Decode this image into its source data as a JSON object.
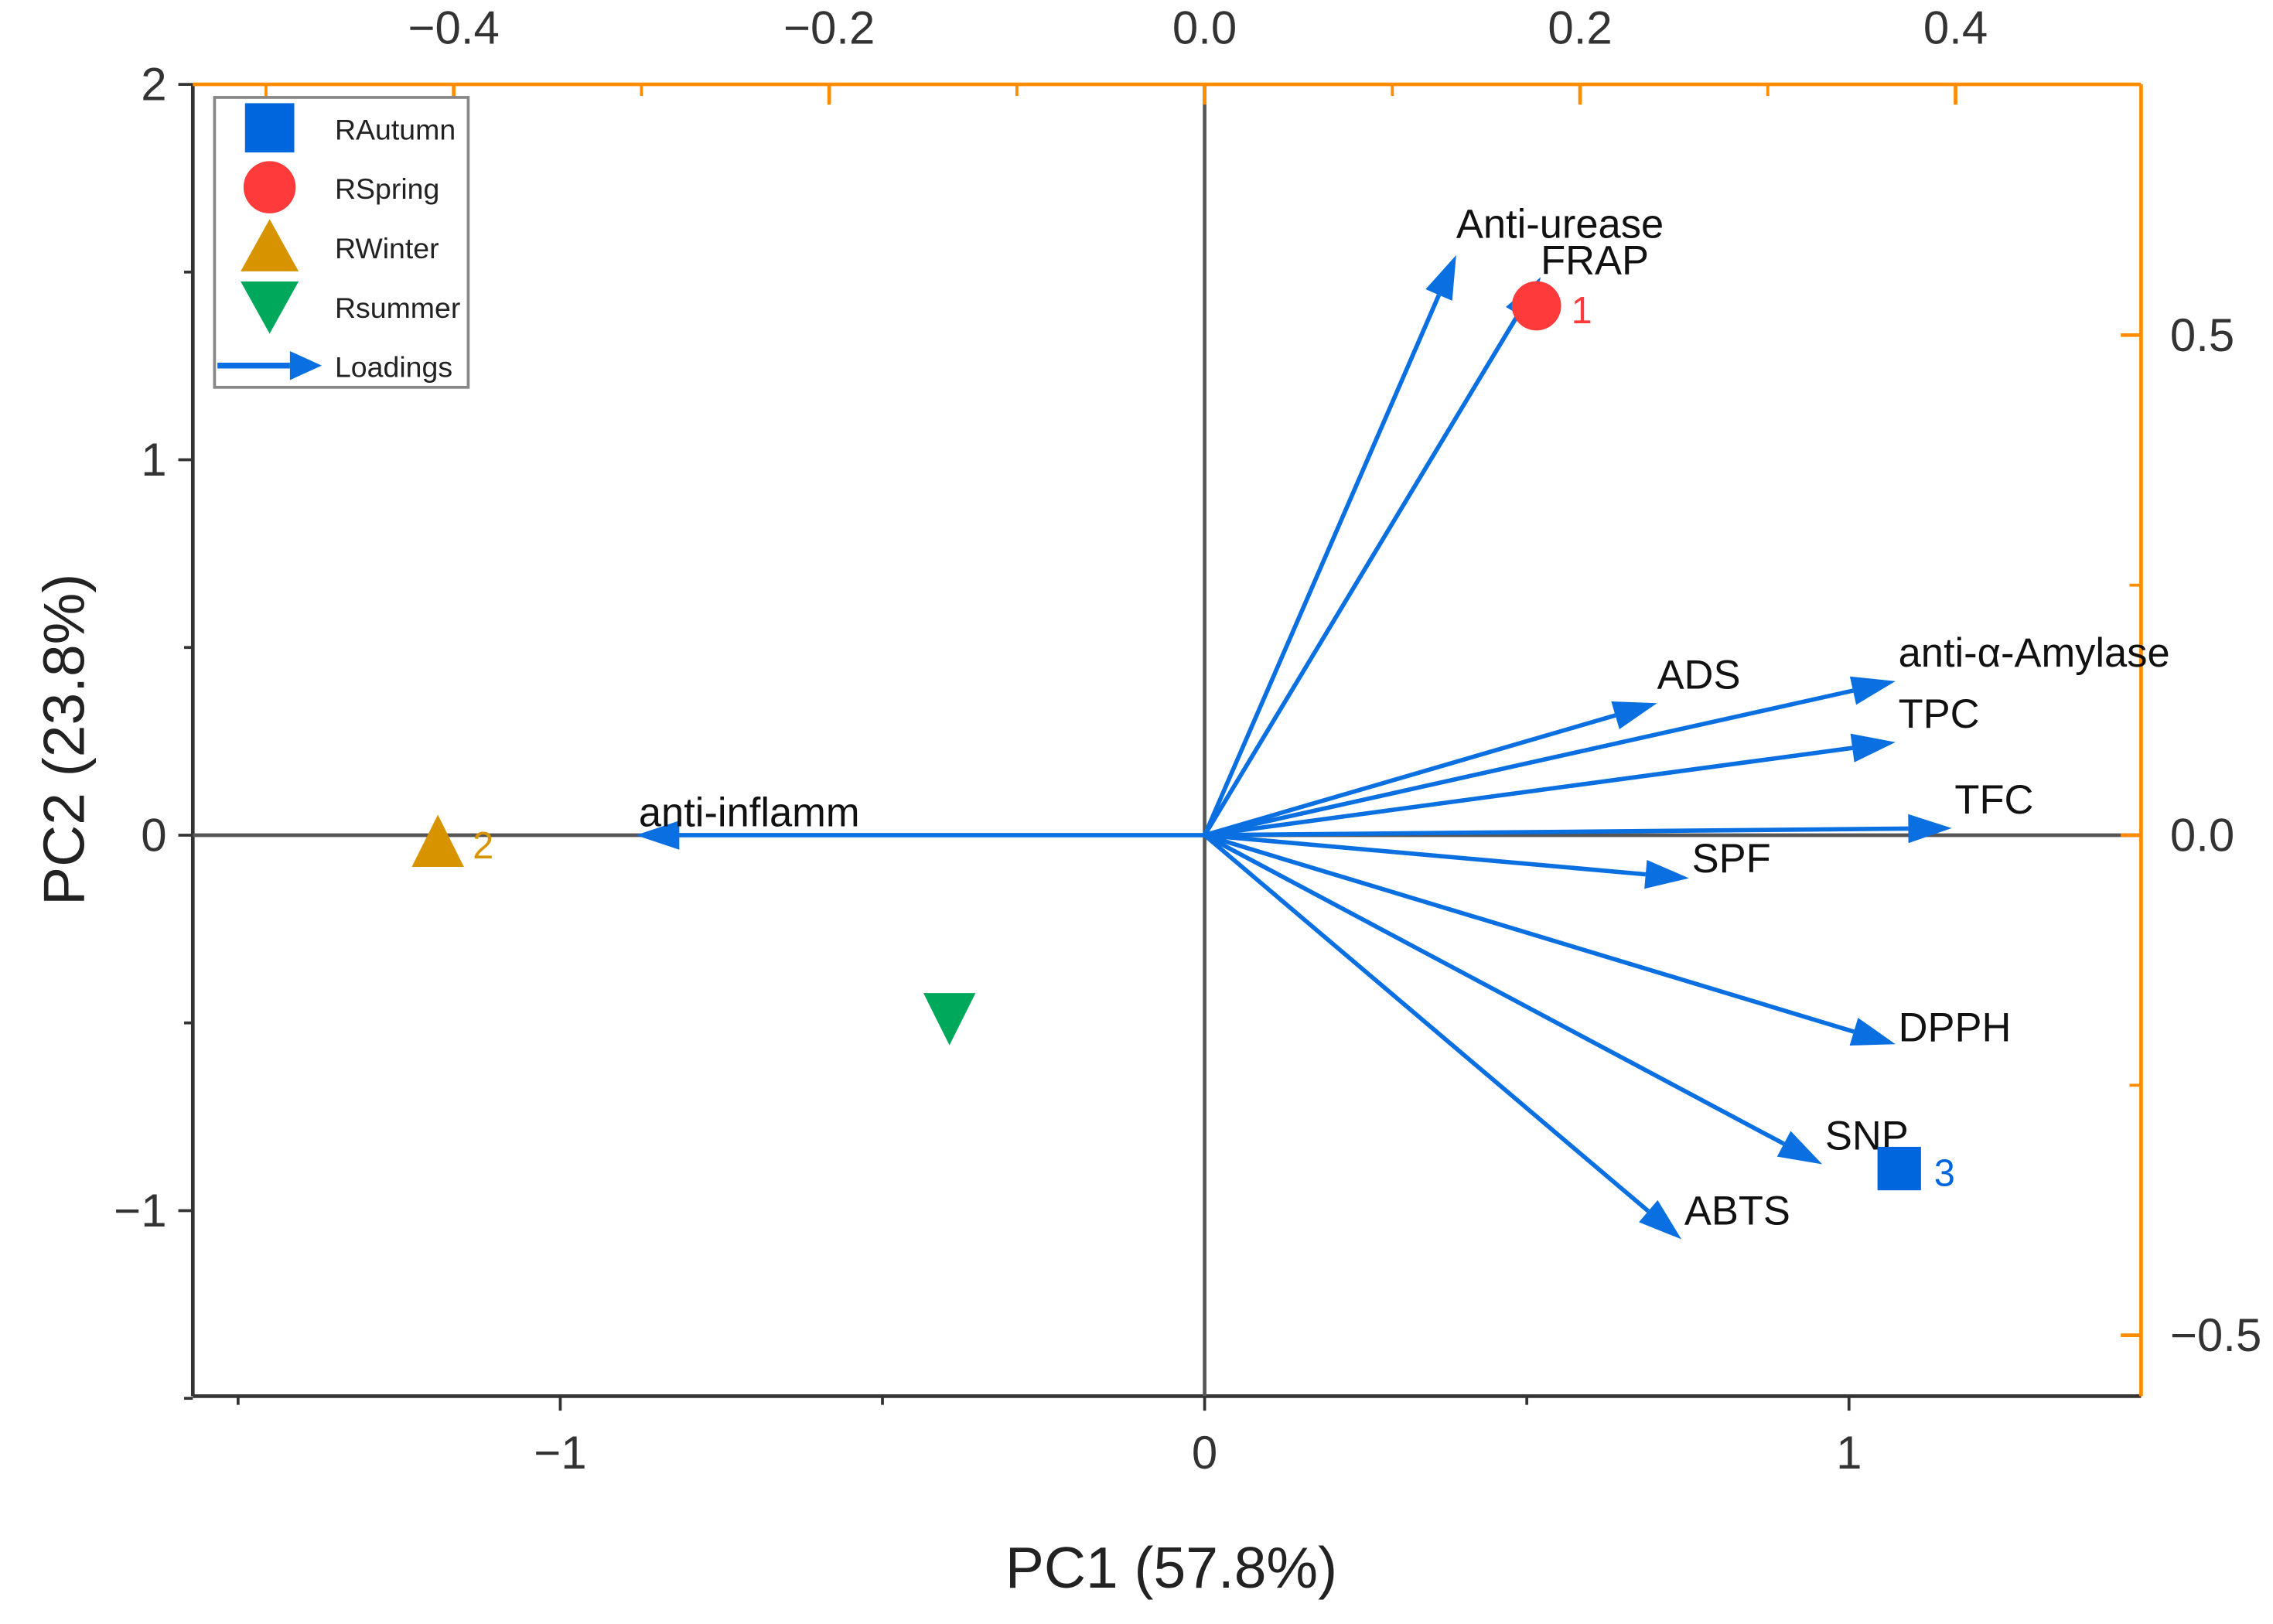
{
  "chart_data": {
    "type": "scatter",
    "title": "",
    "xlabel": "PC1 (57.8%)",
    "ylabel": "PC2 (23.8%)",
    "xlim": [
      -1.57,
      1.45
    ],
    "ylim": [
      -1.5,
      2.0
    ],
    "x_ticks": [
      "-1",
      "0",
      "1"
    ],
    "x_tick_values": [
      -1,
      0,
      1
    ],
    "y_ticks": [
      "-1",
      "0",
      "1",
      "2"
    ],
    "y_tick_values": [
      -1,
      0,
      1,
      2
    ],
    "top_axis": {
      "lim": [
        -0.5,
        0.5
      ],
      "ticks": [
        "-0.4",
        "-0.2",
        "0.0",
        "0.2",
        "0.4"
      ],
      "tick_values": [
        -0.4,
        -0.2,
        0.0,
        0.2,
        0.4
      ]
    },
    "right_axis": {
      "lim": [
        -0.5795,
        0.7246
      ],
      "ticks": [
        "0.5",
        "0.0",
        "-0.5"
      ],
      "tick_values": [
        0.5,
        0.0,
        -0.5
      ]
    },
    "legend": {
      "placement": "top-left",
      "entries": [
        "RAutumn",
        "RSpring",
        "RWinter",
        "Rsummer",
        "Loadings"
      ]
    },
    "scores": [
      {
        "name": "RAutumn",
        "label": "3",
        "x": 1.078,
        "y": -0.888,
        "marker": "square",
        "color": "#0066dd"
      },
      {
        "name": "RSpring",
        "label": "1",
        "x": 0.515,
        "y": 1.41,
        "marker": "circle",
        "color": "#ff3a3a"
      },
      {
        "name": "RWinter",
        "label": "2",
        "x": -1.19,
        "y": -0.015,
        "marker": "triangle-up",
        "color": "#d89400"
      },
      {
        "name": "Rsummer",
        "label": "",
        "x": -0.396,
        "y": -0.49,
        "marker": "triangle-down",
        "color": "#00a85c"
      }
    ],
    "loadings": [
      {
        "name": "Anti-urease",
        "x": 0.134,
        "y": 0.58
      },
      {
        "name": "FRAP",
        "x": 0.179,
        "y": 0.558
      },
      {
        "name": "ADS",
        "x": 0.241,
        "y": 0.132
      },
      {
        "name": "anti-α-Amylase",
        "x": 0.368,
        "y": 0.154
      },
      {
        "name": "TPC",
        "x": 0.368,
        "y": 0.093
      },
      {
        "name": "TFC",
        "x": 0.398,
        "y": 0.007
      },
      {
        "name": "SPF",
        "x": 0.258,
        "y": -0.043
      },
      {
        "name": "DPPH",
        "x": 0.368,
        "y": -0.209
      },
      {
        "name": "SNP",
        "x": 0.329,
        "y": -0.329
      },
      {
        "name": "ABTS",
        "x": 0.254,
        "y": -0.404
      },
      {
        "name": "anti-inflamm",
        "x": -0.303,
        "y": 0.0
      }
    ],
    "colors": {
      "loadings": "#0a6fe0",
      "secondary_axes": "#ff8c00",
      "axes": "#333333"
    }
  }
}
